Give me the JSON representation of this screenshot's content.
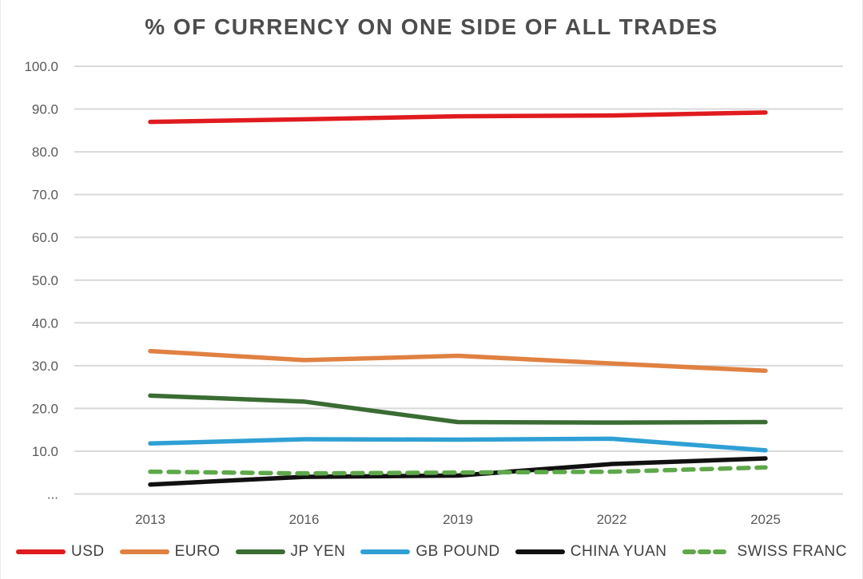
{
  "chart_data": {
    "type": "line",
    "title": "% OF CURRENCY ON ONE SIDE OF ALL TRADES",
    "xlabel": "",
    "ylabel": "",
    "ylim": [
      0,
      100
    ],
    "grid": true,
    "legend_position": "bottom",
    "categories": [
      "2013",
      "2016",
      "2019",
      "2022",
      "2025"
    ],
    "yticks": [
      {
        "value": 100,
        "label": "100.0"
      },
      {
        "value": 90,
        "label": "90.0"
      },
      {
        "value": 80,
        "label": "80.0"
      },
      {
        "value": 70,
        "label": "70.0"
      },
      {
        "value": 60,
        "label": "60.0"
      },
      {
        "value": 50,
        "label": "50.0"
      },
      {
        "value": 40,
        "label": "40.0"
      },
      {
        "value": 30,
        "label": "30.0"
      },
      {
        "value": 20,
        "label": "20.0"
      },
      {
        "value": 10,
        "label": "10.0"
      },
      {
        "value": 0,
        "label": "..."
      }
    ],
    "series": [
      {
        "name": "USD",
        "color": "#e01b1f",
        "style": "solid",
        "values": [
          87.0,
          87.6,
          88.3,
          88.5,
          89.2
        ]
      },
      {
        "name": "EURO",
        "color": "#e08142",
        "style": "solid",
        "values": [
          33.4,
          31.3,
          32.3,
          30.5,
          28.8
        ]
      },
      {
        "name": "JP YEN",
        "color": "#3a6c33",
        "style": "solid",
        "values": [
          23.0,
          21.6,
          16.8,
          16.7,
          16.8
        ]
      },
      {
        "name": "GB POUND",
        "color": "#2fa0d5",
        "style": "solid",
        "values": [
          11.8,
          12.8,
          12.7,
          12.9,
          10.2
        ]
      },
      {
        "name": "CHINA YUAN",
        "color": "#111111",
        "style": "solid",
        "values": [
          2.2,
          4.0,
          4.3,
          7.0,
          8.3
        ]
      },
      {
        "name": "SWISS FRANC",
        "color": "#5ea84a",
        "style": "dashed",
        "values": [
          5.2,
          4.8,
          5.0,
          5.2,
          6.2
        ]
      }
    ]
  },
  "appearance": {
    "background": "#ffffff",
    "title_color": "#4d4d4d",
    "axis_label_color": "#595959",
    "grid_color": "#d9d9d9",
    "legend_label_color": "#404040"
  }
}
